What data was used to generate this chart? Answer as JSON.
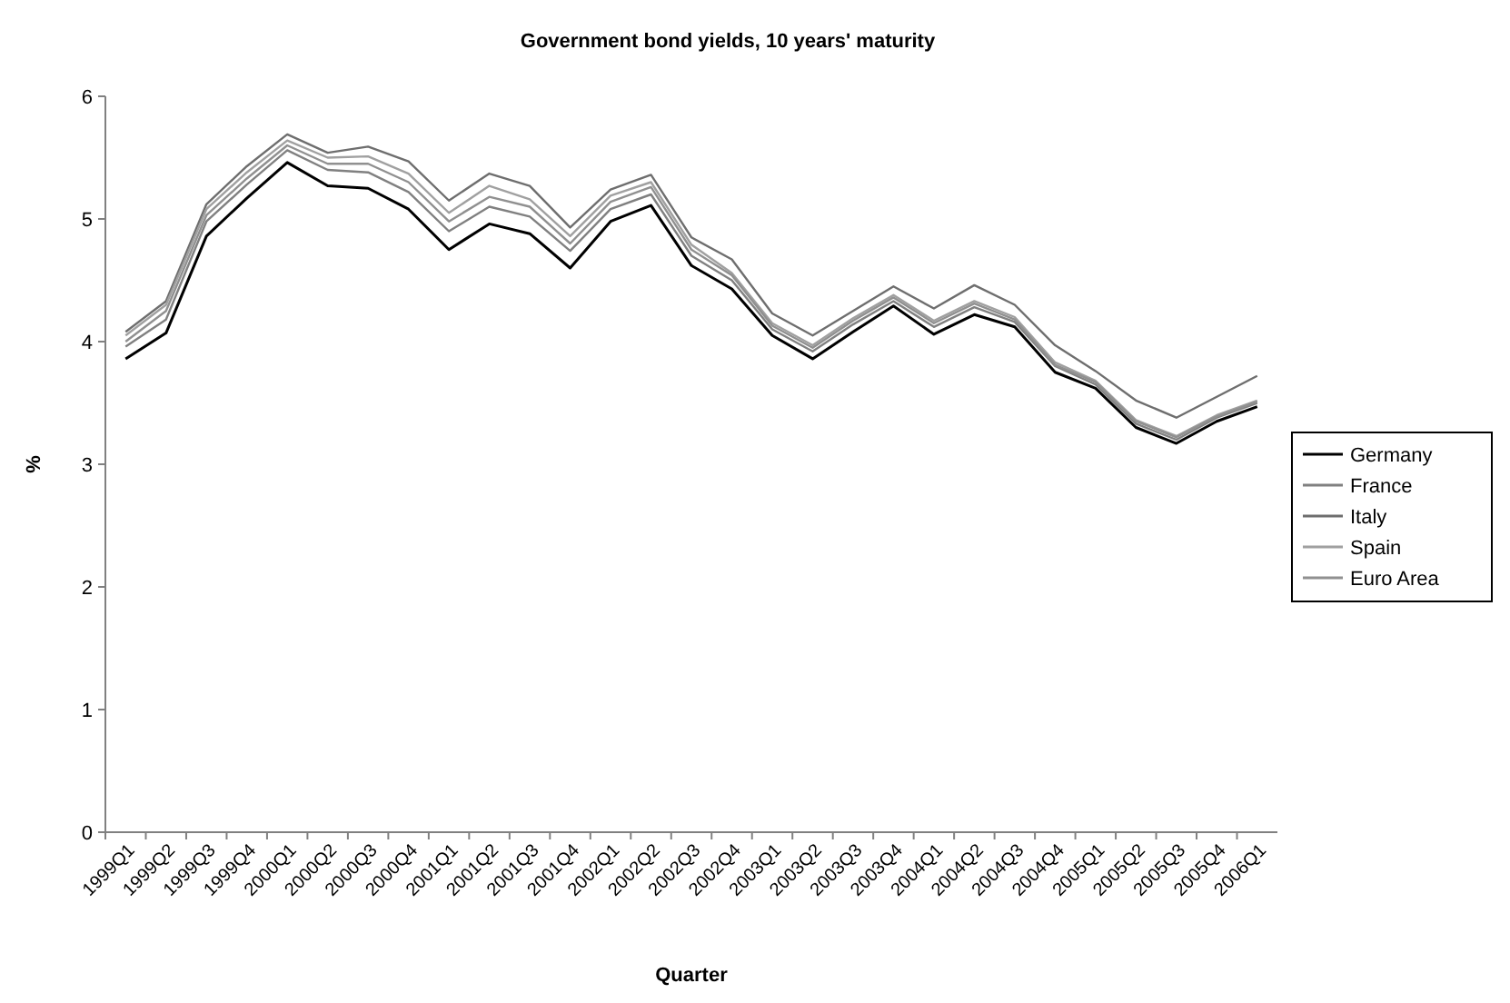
{
  "chart_data": {
    "type": "line",
    "title": "Government bond yields, 10 years' maturity",
    "xlabel": "Quarter",
    "ylabel": "%",
    "categories": [
      "1999Q1",
      "1999Q2",
      "1999Q3",
      "1999Q4",
      "2000Q1",
      "2000Q2",
      "2000Q3",
      "2000Q4",
      "2001Q1",
      "2001Q2",
      "2001Q3",
      "2001Q4",
      "2002Q1",
      "2002Q2",
      "2002Q3",
      "2002Q4",
      "2003Q1",
      "2003Q2",
      "2003Q3",
      "2003Q4",
      "2004Q1",
      "2004Q2",
      "2004Q3",
      "2004Q4",
      "2005Q1",
      "2005Q2",
      "2005Q3",
      "2005Q4",
      "2006Q1"
    ],
    "series": [
      {
        "name": "Germany",
        "color": "#000000",
        "values": [
          3.86,
          4.07,
          4.86,
          5.17,
          5.46,
          5.27,
          5.25,
          5.08,
          4.75,
          4.96,
          4.88,
          4.6,
          4.98,
          5.11,
          4.62,
          4.43,
          4.05,
          3.86,
          4.08,
          4.29,
          4.06,
          4.22,
          4.12,
          3.75,
          3.62,
          3.3,
          3.17,
          3.35,
          3.47
        ]
      },
      {
        "name": "France",
        "color": "#808080",
        "values": [
          3.96,
          4.18,
          4.98,
          5.28,
          5.56,
          5.4,
          5.38,
          5.22,
          4.9,
          5.1,
          5.02,
          4.74,
          5.08,
          5.2,
          4.7,
          4.5,
          4.1,
          3.92,
          4.14,
          4.33,
          4.12,
          4.28,
          4.16,
          3.8,
          3.65,
          3.33,
          3.2,
          3.38,
          3.5
        ]
      },
      {
        "name": "Italy",
        "color": "#6e6e6e",
        "values": [
          4.08,
          4.33,
          5.12,
          5.43,
          5.69,
          5.54,
          5.59,
          5.47,
          5.15,
          5.37,
          5.27,
          4.93,
          5.24,
          5.36,
          4.85,
          4.67,
          4.23,
          4.05,
          4.25,
          4.45,
          4.27,
          4.46,
          4.3,
          3.97,
          3.76,
          3.52,
          3.38,
          3.55,
          3.72
        ]
      },
      {
        "name": "Spain",
        "color": "#a0a0a0",
        "values": [
          4.05,
          4.3,
          5.08,
          5.38,
          5.64,
          5.5,
          5.51,
          5.37,
          5.05,
          5.27,
          5.16,
          4.86,
          5.19,
          5.3,
          4.79,
          4.56,
          4.15,
          3.97,
          4.19,
          4.38,
          4.17,
          4.33,
          4.2,
          3.83,
          3.68,
          3.36,
          3.23,
          3.4,
          3.52
        ]
      },
      {
        "name": "Euro Area",
        "color": "#909090",
        "values": [
          4.0,
          4.25,
          5.03,
          5.33,
          5.6,
          5.45,
          5.45,
          5.3,
          4.98,
          5.18,
          5.1,
          4.8,
          5.14,
          5.26,
          4.75,
          4.54,
          4.13,
          3.95,
          4.17,
          4.36,
          4.15,
          4.31,
          4.18,
          3.81,
          3.67,
          3.35,
          3.22,
          3.39,
          3.51
        ]
      }
    ],
    "ylim": [
      0,
      6
    ],
    "yticks": [
      0,
      1,
      2,
      3,
      4,
      5,
      6
    ],
    "grid": false,
    "legend": "right",
    "marker": "none",
    "line_style": "solid"
  }
}
